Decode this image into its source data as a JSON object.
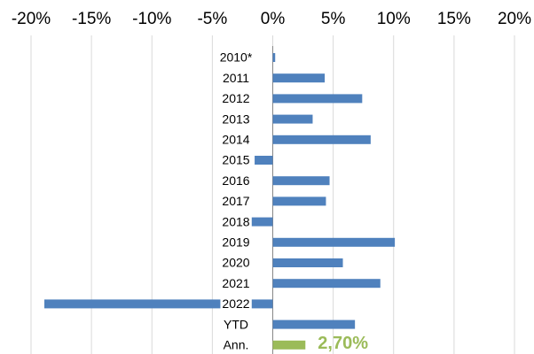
{
  "chart_data": {
    "type": "hbar",
    "categories": [
      "2010*",
      "2011",
      "2012",
      "2013",
      "2014",
      "2015",
      "2016",
      "2017",
      "2018",
      "2019",
      "2020",
      "2021",
      "2022",
      "YTD",
      "Ann."
    ],
    "values": [
      0.2,
      4.3,
      7.4,
      3.3,
      8.1,
      -1.5,
      4.7,
      4.4,
      -4.3,
      10.1,
      5.8,
      8.9,
      -18.9,
      6.8,
      2.7
    ],
    "value_labels": [
      null,
      null,
      null,
      null,
      null,
      null,
      null,
      null,
      null,
      null,
      null,
      null,
      null,
      null,
      "2,70%"
    ],
    "colors": [
      "#4f81bd",
      "#4f81bd",
      "#4f81bd",
      "#4f81bd",
      "#4f81bd",
      "#4f81bd",
      "#4f81bd",
      "#4f81bd",
      "#4f81bd",
      "#4f81bd",
      "#4f81bd",
      "#4f81bd",
      "#4f81bd",
      "#4f81bd",
      "#9bbb59"
    ],
    "xlim": [
      -20,
      20
    ],
    "xticks": [
      {
        "value": -20,
        "label": "-20%"
      },
      {
        "value": -15,
        "label": "-15%"
      },
      {
        "value": -10,
        "label": "-10%"
      },
      {
        "value": -5,
        "label": "-5%"
      },
      {
        "value": 0,
        "label": "0%"
      },
      {
        "value": 5,
        "label": "5%"
      },
      {
        "value": 10,
        "label": "10%"
      },
      {
        "value": 15,
        "label": "15%"
      },
      {
        "value": 20,
        "label": "20%"
      }
    ],
    "grid": true
  }
}
